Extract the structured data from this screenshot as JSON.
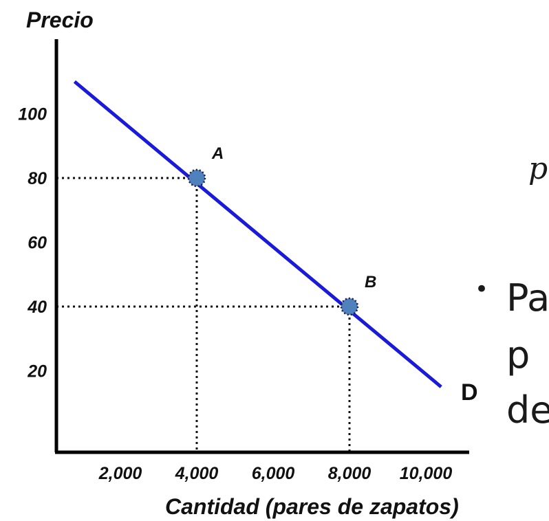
{
  "chart_data": {
    "type": "line",
    "title": "",
    "ylabel": "Precio",
    "xlabel": "Cantidad (pares de zapatos)",
    "x_ticks": [
      2000,
      4000,
      6000,
      8000,
      10000
    ],
    "x_tick_labels": [
      "2,000",
      "4,000",
      "6,000",
      "8,000",
      "10,000"
    ],
    "y_ticks": [
      20,
      40,
      60,
      80,
      100
    ],
    "y_tick_labels": [
      "20",
      "40",
      "60",
      "80",
      "100"
    ],
    "xlim": [
      0,
      10500
    ],
    "ylim": [
      0,
      115
    ],
    "grid": false,
    "series": [
      {
        "name": "D",
        "color": "#1a1adb",
        "x": [
          800,
          10400
        ],
        "y": [
          110,
          15
        ]
      }
    ],
    "points": [
      {
        "label": "A",
        "x": 4000,
        "y": 80,
        "color": "#4f81bd"
      },
      {
        "label": "B",
        "x": 8000,
        "y": 40,
        "color": "#4f81bd"
      }
    ],
    "reference_lines": "dotted"
  },
  "slide_fragment": {
    "formula_glyph": "p",
    "bullet": "•",
    "lines": [
      "Pa",
      "p",
      "de"
    ]
  }
}
